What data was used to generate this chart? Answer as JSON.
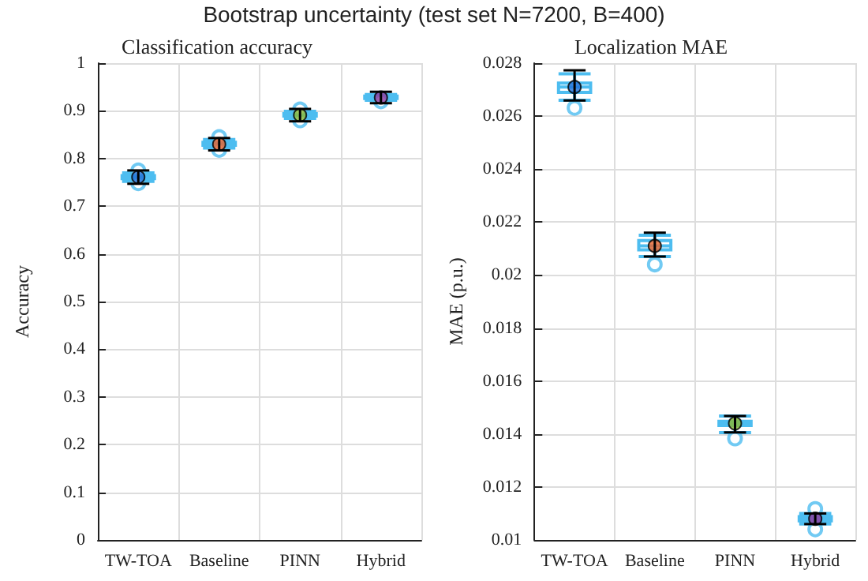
{
  "chart_data": [
    {
      "type": "box",
      "title": "Classification accuracy",
      "ylabel": "Accuracy",
      "annotations": [
        "Bootstrap uncertainty (test set N=7200, B=400)"
      ],
      "categories": [
        "TW-TOA",
        "Baseline",
        "PINN",
        "Hybrid"
      ],
      "ylim": [
        0,
        1
      ],
      "yticks": [
        0,
        0.1,
        0.2,
        0.3,
        0.4,
        0.5,
        0.6,
        0.7,
        0.8,
        0.9,
        1
      ],
      "grid": true,
      "series": [
        {
          "color": "#4dbdf0",
          "boxes": [
            {
              "low": 0.752,
              "q1": 0.758,
              "median": 0.761,
              "q3": 0.764,
              "high": 0.77,
              "outliers": [
                0.748,
                0.775
              ]
            },
            {
              "low": 0.822,
              "q1": 0.828,
              "median": 0.831,
              "q3": 0.834,
              "high": 0.84,
              "outliers": [
                0.818,
                0.845
              ]
            },
            {
              "low": 0.884,
              "q1": 0.889,
              "median": 0.891,
              "q3": 0.894,
              "high": 0.899,
              "outliers": [
                0.88,
                0.903
              ]
            },
            {
              "low": 0.922,
              "q1": 0.926,
              "median": 0.928,
              "q3": 0.931,
              "high": 0.934,
              "outliers": [
                0.92
              ]
            }
          ]
        },
        {
          "type": "scatter",
          "marker": "circle",
          "colors": [
            "#1f6fd8",
            "#e8622a",
            "#8ab832",
            "#8e3a9d"
          ],
          "values": [
            0.761,
            0.83,
            0.891,
            0.928
          ],
          "errors": [
            0.014,
            0.013,
            0.013,
            0.012
          ]
        }
      ]
    },
    {
      "type": "box",
      "title": "Localization MAE",
      "ylabel": "MAE (p.u.)",
      "categories": [
        "TW-TOA",
        "Baseline",
        "PINN",
        "Hybrid"
      ],
      "ylim": [
        0.01,
        0.028
      ],
      "yticks": [
        0.01,
        0.012,
        0.014,
        0.016,
        0.018,
        0.02,
        0.022,
        0.024,
        0.026,
        0.028
      ],
      "grid": true,
      "series": [
        {
          "color": "#4dbdf0",
          "boxes": [
            {
              "low": 0.0266,
              "q1": 0.0269,
              "median": 0.0271,
              "q3": 0.02725,
              "high": 0.0276,
              "outliers": [
                0.02631
              ]
            },
            {
              "low": 0.0207,
              "q1": 0.02095,
              "median": 0.0211,
              "q3": 0.0213,
              "high": 0.0215,
              "outliers": [
                0.0204
              ]
            },
            {
              "low": 0.01405,
              "q1": 0.01432,
              "median": 0.0144,
              "q3": 0.01448,
              "high": 0.01468,
              "outliers": [
                0.01383
              ]
            },
            {
              "low": 0.0106,
              "q1": 0.01072,
              "median": 0.0108,
              "q3": 0.01088,
              "high": 0.011,
              "outliers": [
                0.01117,
                0.0104
              ]
            }
          ]
        },
        {
          "type": "scatter",
          "marker": "circle",
          "colors": [
            "#1f6fd8",
            "#e8622a",
            "#8ab832",
            "#8e3a9d"
          ],
          "values": [
            0.0271,
            0.0211,
            0.0144,
            0.0108
          ],
          "errors": [
            [
              0.02659,
              0.02773
            ],
            [
              0.0207,
              0.0216
            ],
            [
              0.01406,
              0.01468
            ],
            [
              0.0106,
              0.011
            ]
          ]
        }
      ]
    }
  ]
}
